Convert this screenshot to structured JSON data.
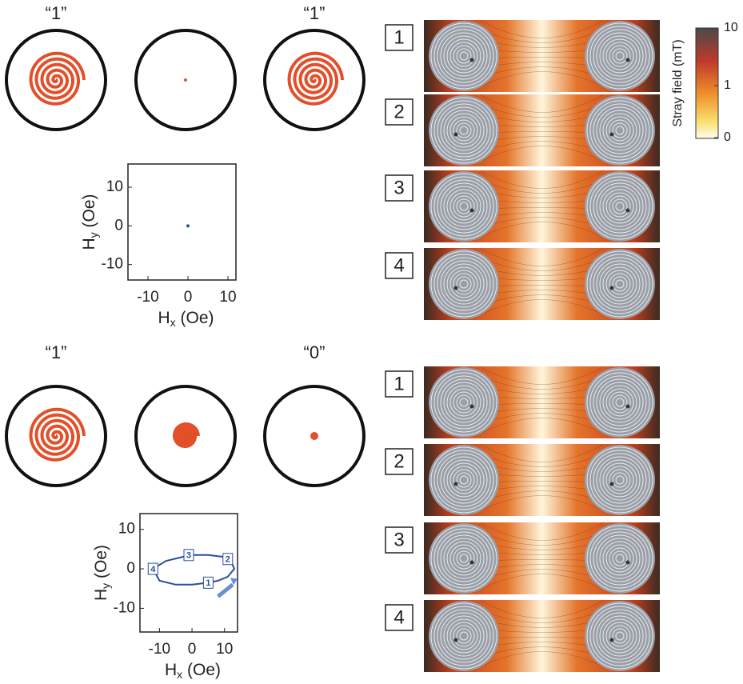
{
  "panels": [
    {
      "state_labels": {
        "left": "“1”",
        "right": "“1”"
      },
      "field_plot": {
        "x_label": {
          "symbol": "H",
          "subscript": "x",
          "unit": " (Oe)"
        },
        "y_label": {
          "symbol": "H",
          "subscript": "y",
          "unit": " (Oe)"
        },
        "xlim": [
          -15,
          12
        ],
        "ylim": [
          -14,
          16
        ],
        "xticks": [
          -10,
          0,
          10
        ],
        "yticks": [
          -10,
          0,
          10
        ],
        "color": "#2a4da0",
        "points": {
          "x": [
            0
          ],
          "y": [
            0
          ]
        }
      },
      "stray_field_frames": [
        "1",
        "2",
        "3",
        "4"
      ]
    },
    {
      "state_labels": {
        "left": "“1”",
        "right": "“0”"
      },
      "field_plot": {
        "x_label": {
          "symbol": "H",
          "subscript": "x",
          "unit": " (Oe)"
        },
        "y_label": {
          "symbol": "H",
          "subscript": "y",
          "unit": " (Oe)"
        },
        "xlim": [
          -16,
          14
        ],
        "ylim": [
          -16,
          14
        ],
        "xticks": [
          -10,
          0,
          10
        ],
        "yticks": [
          -10,
          0,
          10
        ],
        "color": "#2a4da0",
        "loop": {
          "x": [
            -12,
            -8,
            -3,
            0,
            5,
            10,
            12,
            13,
            11,
            8,
            5,
            0,
            -5,
            -10,
            -12
          ],
          "y": [
            0,
            2,
            3,
            3.5,
            3.5,
            3,
            2,
            0,
            -2,
            -3,
            -3.5,
            -4,
            -4,
            -3,
            0
          ]
        },
        "markers": [
          {
            "label": "1",
            "x": 5,
            "y": -3.5
          },
          {
            "label": "2",
            "x": 11,
            "y": 2.5
          },
          {
            "label": "3",
            "x": -1,
            "y": 3.5
          },
          {
            "label": "4",
            "x": -12,
            "y": 0
          }
        ]
      },
      "stray_field_frames": [
        "1",
        "2",
        "3",
        "4"
      ]
    }
  ],
  "colorbar": {
    "title": "Stray field (mT)",
    "ticks": [
      10,
      1,
      0
    ]
  }
}
